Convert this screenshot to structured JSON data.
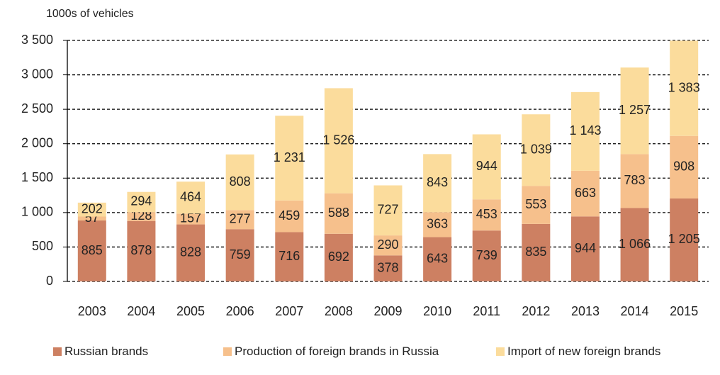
{
  "chart_data": {
    "type": "stacked_bar",
    "y_axis_label": "1000s of vehicles",
    "categories": [
      "2003",
      "2004",
      "2005",
      "2006",
      "2007",
      "2008",
      "2009",
      "2010",
      "2011",
      "2012",
      "2013",
      "2014",
      "2015"
    ],
    "series": [
      {
        "name": "Russian brands",
        "color": "#cd8062",
        "values": [
          885,
          878,
          828,
          759,
          716,
          692,
          378,
          643,
          739,
          835,
          944,
          1066,
          1205
        ],
        "value_labels": [
          "885",
          "878",
          "828",
          "759",
          "716",
          "692",
          "378",
          "643",
          "739",
          "835",
          "944",
          "1 066",
          "1 205"
        ]
      },
      {
        "name": "Production of foreign brands in Russia",
        "color": "#f6c08c",
        "values": [
          57,
          128,
          157,
          277,
          459,
          588,
          290,
          363,
          453,
          553,
          663,
          783,
          908
        ],
        "value_labels": [
          "57",
          "128",
          "157",
          "277",
          "459",
          "588",
          "290",
          "363",
          "453",
          "553",
          "663",
          "783",
          "908"
        ]
      },
      {
        "name": "Import of new foreign brands",
        "color": "#fbdc9c",
        "values": [
          202,
          294,
          464,
          808,
          1231,
          1526,
          727,
          843,
          944,
          1039,
          1143,
          1257,
          1383
        ],
        "value_labels": [
          "202",
          "294",
          "464",
          "808",
          "1 231",
          "1 526",
          "727",
          "843",
          "944",
          "1 039",
          "1 143",
          "1 257",
          "1 383"
        ]
      }
    ],
    "ylim": [
      0,
      3500
    ],
    "yticks": [
      0,
      500,
      {
        "value": 1000,
        "label": "1 000"
      },
      {
        "value": 1500,
        "label": "1 500"
      },
      {
        "value": 2000,
        "label": "2 000"
      },
      {
        "value": 2500,
        "label": "2 500"
      },
      {
        "value": 3000,
        "label": "3 000"
      },
      {
        "value": 3500,
        "label": "3 500"
      }
    ],
    "grid": true,
    "legend": "bottom"
  }
}
